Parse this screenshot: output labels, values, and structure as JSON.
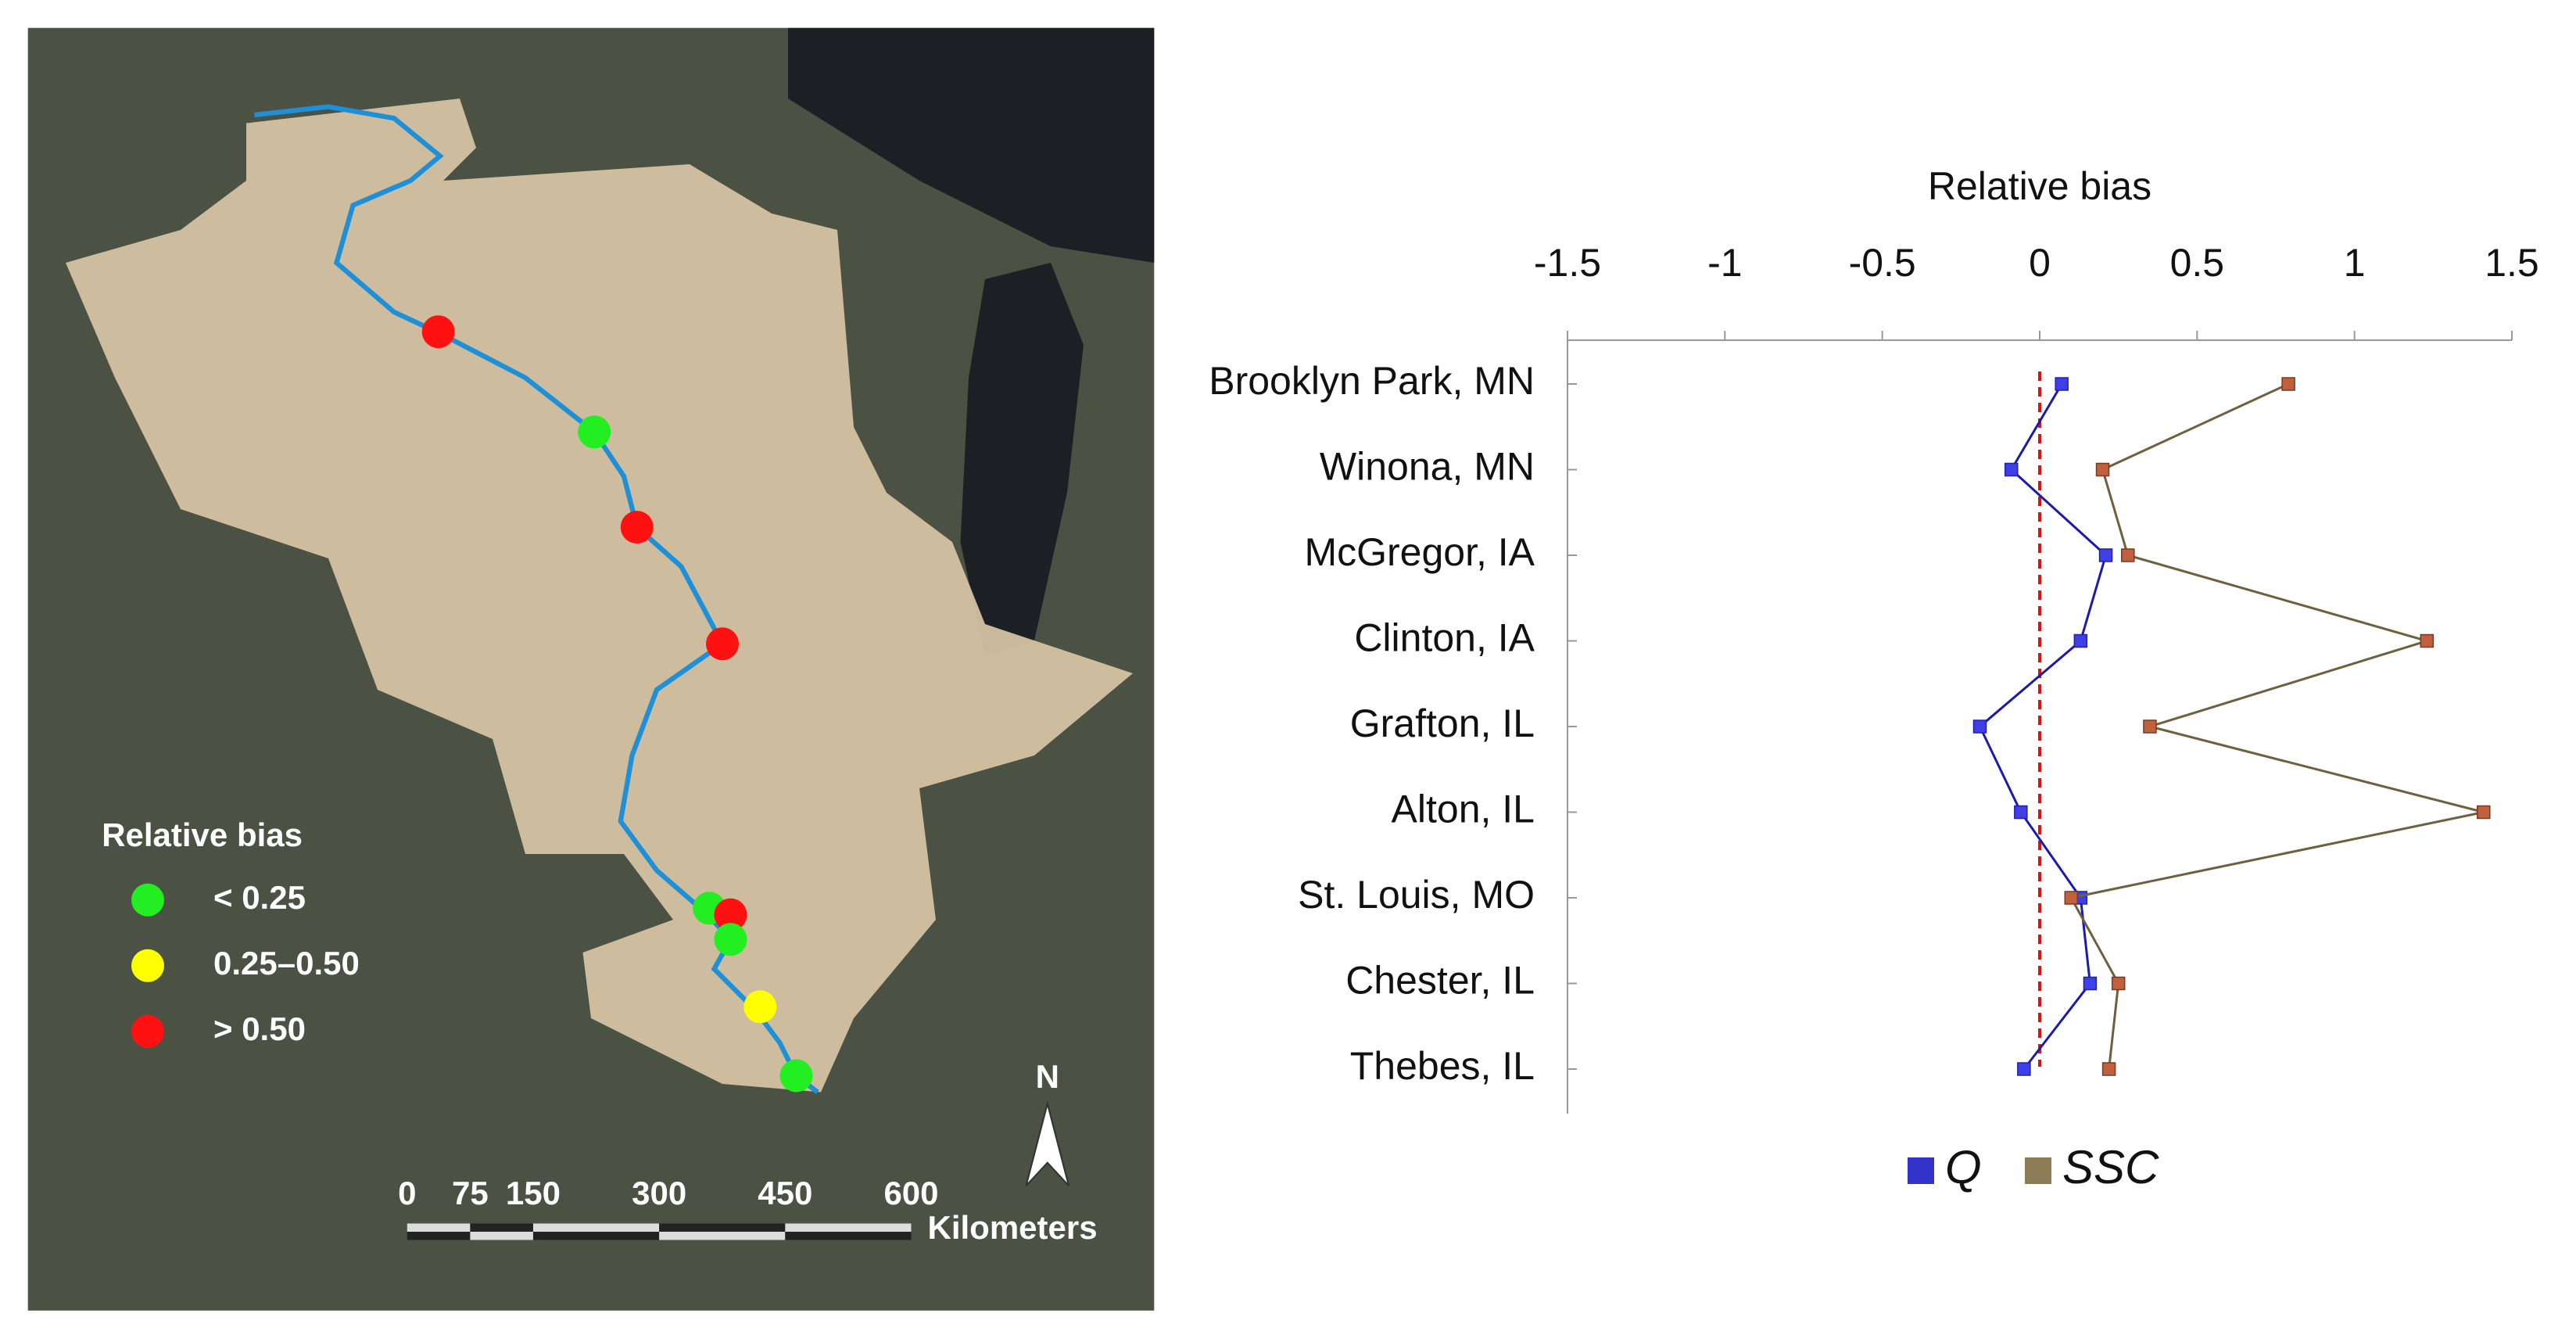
{
  "map": {
    "legend_title": "Relative bias",
    "legend": [
      {
        "label": "< 0.25",
        "color": "#22ee22"
      },
      {
        "label": "0.25–0.50",
        "color": "#ffff00"
      },
      {
        "label": "> 0.50",
        "color": "#ff1111"
      }
    ],
    "scale_ticks": [
      0,
      75,
      150,
      300,
      450,
      600
    ],
    "scale_unit": "Kilometers",
    "north": "N"
  },
  "chart_data": {
    "type": "line",
    "x_label": "Relative bias",
    "categories": [
      "Brooklyn Park, MN",
      "Winona, MN",
      "McGregor, IA",
      "Clinton, IA",
      "Grafton, IL",
      "Alton, IL",
      "St. Louis, MO",
      "Chester, IL",
      "Thebes, IL"
    ],
    "series": [
      {
        "name": "Q",
        "color": "#3333cc",
        "values": [
          0.07,
          -0.09,
          0.21,
          0.13,
          -0.19,
          -0.06,
          0.13,
          0.16,
          -0.05
        ]
      },
      {
        "name": "SSC",
        "color": "#8c7b55",
        "values": [
          0.79,
          0.2,
          0.28,
          1.23,
          0.35,
          1.41,
          0.1,
          0.25,
          0.22
        ]
      }
    ],
    "xlim": [
      -1.5,
      1.5
    ],
    "xticks": [
      -1.5,
      -1,
      -0.5,
      0,
      0.5,
      1,
      1.5
    ]
  }
}
